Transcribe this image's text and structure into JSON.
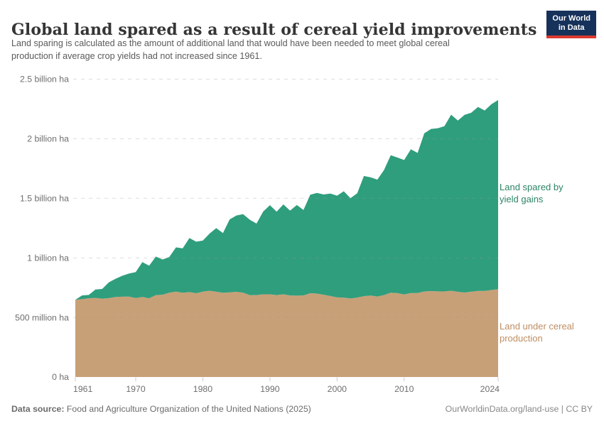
{
  "header": {
    "title": "Global land spared as a result of cereal yield improvements",
    "subtitle": {
      "line1": "Land sparing is calculated as the amount of additional land that would have been needed to meet global cereal",
      "line2": "production if average crop yields had not increased since 1961."
    },
    "logo": {
      "line1": "Our World",
      "line2": "in Data"
    }
  },
  "footer": {
    "source_label": "Data source:",
    "source_text": " Food and Agriculture Organization of the United Nations (2025)",
    "credit": "OurWorldinData.org/land-use | CC BY"
  },
  "colors": {
    "spared_area": "#2F9E7D",
    "under_area": "#C8A077",
    "spared_label": "#2C8465",
    "under_label": "#BE8E62",
    "gridline": "#999999",
    "tick": "#c9c9c9",
    "axis_text": "#6e6e6e",
    "logo_bg": "#16325a",
    "logo_red": "#dc3a31"
  },
  "chart_data": {
    "type": "area",
    "stacked": true,
    "title": "Global land spared as a result of cereal yield improvements",
    "unit": "million hectares",
    "ylim": [
      0,
      2500
    ],
    "grid": "dashed-horizontal",
    "legend_position": "right-of-plot",
    "x": [
      1961,
      1962,
      1963,
      1964,
      1965,
      1966,
      1967,
      1968,
      1969,
      1970,
      1971,
      1972,
      1973,
      1974,
      1975,
      1976,
      1977,
      1978,
      1979,
      1980,
      1981,
      1982,
      1983,
      1984,
      1985,
      1986,
      1987,
      1988,
      1989,
      1990,
      1991,
      1992,
      1993,
      1994,
      1995,
      1996,
      1997,
      1998,
      1999,
      2000,
      2001,
      2002,
      2003,
      2004,
      2005,
      2006,
      2007,
      2008,
      2009,
      2010,
      2011,
      2012,
      2013,
      2014,
      2015,
      2016,
      2017,
      2018,
      2019,
      2020,
      2021,
      2022,
      2023,
      2024
    ],
    "series": [
      {
        "name": "Land under cereal production",
        "color": "#C8A077",
        "label_color": "#BE8E62",
        "values": [
          648,
          653,
          661,
          664,
          658,
          662,
          672,
          674,
          675,
          663,
          672,
          661,
          688,
          691,
          708,
          717,
          707,
          713,
          703,
          717,
          724,
          716,
          707,
          711,
          715,
          708,
          687,
          688,
          694,
          694,
          688,
          694,
          685,
          683,
          685,
          703,
          700,
          691,
          680,
          668,
          667,
          659,
          667,
          679,
          684,
          676,
          688,
          708,
          704,
          693,
          705,
          705,
          718,
          721,
          719,
          718,
          724,
          715,
          709,
          717,
          722,
          722,
          730,
          737
        ]
      },
      {
        "name": "Land spared by yield gains",
        "color": "#2F9E7D",
        "label_color": "#2C8465",
        "values": [
          0,
          32,
          28,
          70,
          81,
          133,
          153,
          176,
          194,
          218,
          293,
          273,
          323,
          295,
          299,
          371,
          373,
          454,
          433,
          428,
          480,
          534,
          501,
          612,
          641,
          659,
          633,
          600,
          695,
          748,
          700,
          755,
          712,
          761,
          717,
          827,
          845,
          841,
          860,
          854,
          892,
          842,
          875,
          1008,
          992,
          981,
          1049,
          1154,
          1138,
          1128,
          1207,
          1176,
          1327,
          1361,
          1369,
          1387,
          1478,
          1438,
          1492,
          1501,
          1545,
          1515,
          1560,
          1588
        ]
      }
    ],
    "y_ticks": [
      {
        "value": 0,
        "label": "0 ha"
      },
      {
        "value": 500,
        "label": "500 million ha"
      },
      {
        "value": 1000,
        "label": "1 billion ha"
      },
      {
        "value": 1500,
        "label": "1.5 billion ha"
      },
      {
        "value": 2000,
        "label": "2 billion ha"
      },
      {
        "value": 2500,
        "label": "2.5 billion ha"
      }
    ],
    "x_ticks": [
      1961,
      1970,
      1980,
      1990,
      2000,
      2010,
      2024
    ]
  }
}
